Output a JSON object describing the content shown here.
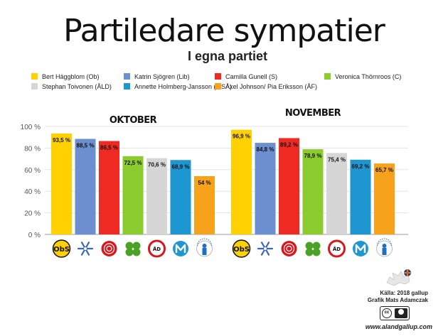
{
  "chart_data": {
    "type": "bar",
    "title": "Partiledare sympatier",
    "subtitle": "I egna partiet",
    "groups": [
      "OKTOBER",
      "NOVEMBER"
    ],
    "series": [
      {
        "name": "Bert Häggblom (Ob)",
        "color": "#FFD100",
        "values": [
          93.5,
          96.9
        ],
        "labels": [
          "93,5 %",
          "96,9 %"
        ],
        "logo": "obs-logo-icon"
      },
      {
        "name": "Katrin Sjögren (Lib)",
        "color": "#6C8FD0",
        "values": [
          88.5,
          84.8
        ],
        "labels": [
          "88,5 %",
          "84,8 %"
        ],
        "logo": "snowflake-icon"
      },
      {
        "name": "Camilla Gunell (S)",
        "color": "#EE2A22",
        "values": [
          86.5,
          89.2
        ],
        "labels": [
          "86,5 %",
          "89,2 %"
        ],
        "logo": "rose-icon"
      },
      {
        "name": "Veronica Thörnroos (C)",
        "color": "#8BCB2E",
        "values": [
          72.5,
          78.9
        ],
        "labels": [
          "72,5 %",
          "78,9 %"
        ],
        "logo": "clover-icon"
      },
      {
        "name": "Stephan Toivonen (ÅLD)",
        "color": "#D6D6D6",
        "values": [
          70.6,
          75.4
        ],
        "labels": [
          "70,6 %",
          "75,4 %"
        ],
        "logo": "ald-logo-icon"
      },
      {
        "name": "Annette Holmberg-Jansson (MSÅ)",
        "color": "#1E96D0",
        "values": [
          68.9,
          69.2
        ],
        "labels": [
          "68,9 %",
          "69,2 %"
        ],
        "logo": "msa-logo-icon"
      },
      {
        "name": "Axel Johnson/ Pia Eriksson (ÅF)",
        "color": "#F7A21B",
        "values": [
          54,
          65.7
        ],
        "labels": [
          "54 %",
          "65,7 %"
        ],
        "logo": "af-logo-icon"
      }
    ],
    "y_ticks": [
      "0 %",
      "20 %",
      "40 %",
      "60 %",
      "80 %",
      "100 %"
    ],
    "ylim": [
      0,
      100
    ],
    "grid": true,
    "legend_position": "top"
  },
  "credits": {
    "source": "Källa: 2018 gallup",
    "graphic": "Grafik Mats Adamczak",
    "url": "www.alandgallup.com",
    "cc_mark": "cc"
  }
}
